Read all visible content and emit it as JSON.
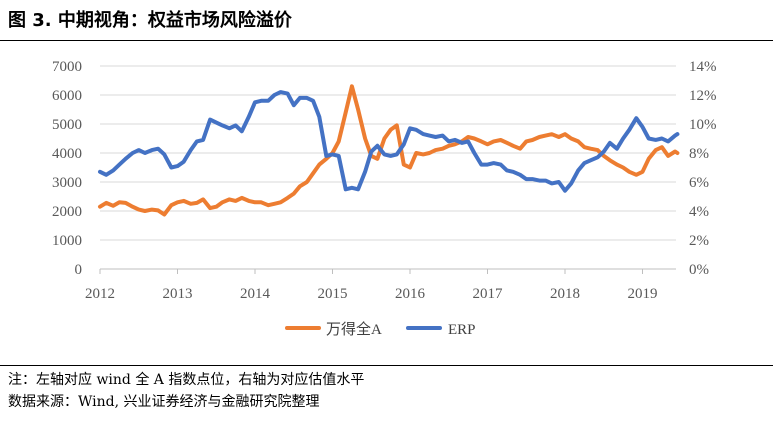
{
  "figure": {
    "title": "图 3. 中期视角：权益市场风险溢价",
    "note": "注：左轴对应 wind 全 A 指数点位，右轴为对应估值水平",
    "source": "数据来源：Wind, 兴业证券经济与金融研究院整理"
  },
  "chart_data": {
    "type": "line",
    "title": "",
    "xlabel": "",
    "ylabel": "",
    "x_ticks": [
      "2012",
      "2013",
      "2014",
      "2015",
      "2016",
      "2017",
      "2018",
      "2019"
    ],
    "y_left_ticks": [
      "0",
      "1000",
      "2000",
      "3000",
      "4000",
      "5000",
      "6000",
      "7000"
    ],
    "y_right_ticks": [
      "0%",
      "2%",
      "4%",
      "6%",
      "8%",
      "10%",
      "12%",
      "14%"
    ],
    "x_range": [
      2012,
      2019.45
    ],
    "y_left_range": [
      0,
      7000
    ],
    "y_right_range": [
      0,
      14
    ],
    "grid": "horizontal",
    "legend_position": "bottom",
    "series": [
      {
        "name": "万得全A",
        "axis": "left",
        "color": "#ED7D31",
        "points": [
          [
            2012.0,
            2150
          ],
          [
            2012.08,
            2280
          ],
          [
            2012.17,
            2180
          ],
          [
            2012.25,
            2300
          ],
          [
            2012.33,
            2280
          ],
          [
            2012.42,
            2150
          ],
          [
            2012.5,
            2050
          ],
          [
            2012.58,
            2000
          ],
          [
            2012.67,
            2050
          ],
          [
            2012.75,
            2020
          ],
          [
            2012.83,
            1880
          ],
          [
            2012.92,
            2200
          ],
          [
            2013.0,
            2300
          ],
          [
            2013.08,
            2350
          ],
          [
            2013.17,
            2250
          ],
          [
            2013.25,
            2280
          ],
          [
            2013.33,
            2400
          ],
          [
            2013.42,
            2100
          ],
          [
            2013.5,
            2150
          ],
          [
            2013.58,
            2300
          ],
          [
            2013.67,
            2400
          ],
          [
            2013.75,
            2350
          ],
          [
            2013.83,
            2450
          ],
          [
            2013.92,
            2350
          ],
          [
            2014.0,
            2300
          ],
          [
            2014.08,
            2300
          ],
          [
            2014.17,
            2200
          ],
          [
            2014.25,
            2250
          ],
          [
            2014.33,
            2300
          ],
          [
            2014.42,
            2450
          ],
          [
            2014.5,
            2600
          ],
          [
            2014.58,
            2850
          ],
          [
            2014.67,
            3000
          ],
          [
            2014.75,
            3300
          ],
          [
            2014.83,
            3600
          ],
          [
            2014.92,
            3800
          ],
          [
            2015.0,
            4000
          ],
          [
            2015.08,
            4400
          ],
          [
            2015.17,
            5400
          ],
          [
            2015.25,
            6300
          ],
          [
            2015.33,
            5500
          ],
          [
            2015.42,
            4500
          ],
          [
            2015.5,
            3900
          ],
          [
            2015.58,
            3800
          ],
          [
            2015.67,
            4500
          ],
          [
            2015.75,
            4800
          ],
          [
            2015.83,
            4950
          ],
          [
            2015.92,
            3600
          ],
          [
            2016.0,
            3500
          ],
          [
            2016.08,
            4000
          ],
          [
            2016.17,
            3950
          ],
          [
            2016.25,
            4000
          ],
          [
            2016.33,
            4100
          ],
          [
            2016.42,
            4150
          ],
          [
            2016.5,
            4250
          ],
          [
            2016.58,
            4300
          ],
          [
            2016.67,
            4400
          ],
          [
            2016.75,
            4550
          ],
          [
            2016.83,
            4500
          ],
          [
            2016.92,
            4400
          ],
          [
            2017.0,
            4300
          ],
          [
            2017.08,
            4400
          ],
          [
            2017.17,
            4450
          ],
          [
            2017.25,
            4350
          ],
          [
            2017.33,
            4250
          ],
          [
            2017.42,
            4150
          ],
          [
            2017.5,
            4400
          ],
          [
            2017.58,
            4450
          ],
          [
            2017.67,
            4550
          ],
          [
            2017.75,
            4600
          ],
          [
            2017.83,
            4650
          ],
          [
            2017.92,
            4550
          ],
          [
            2018.0,
            4650
          ],
          [
            2018.08,
            4500
          ],
          [
            2018.17,
            4400
          ],
          [
            2018.25,
            4200
          ],
          [
            2018.33,
            4150
          ],
          [
            2018.42,
            4100
          ],
          [
            2018.5,
            3900
          ],
          [
            2018.58,
            3750
          ],
          [
            2018.67,
            3600
          ],
          [
            2018.75,
            3500
          ],
          [
            2018.83,
            3350
          ],
          [
            2018.92,
            3250
          ],
          [
            2019.0,
            3350
          ],
          [
            2019.08,
            3800
          ],
          [
            2019.17,
            4100
          ],
          [
            2019.25,
            4200
          ],
          [
            2019.33,
            3900
          ],
          [
            2019.42,
            4050
          ],
          [
            2019.45,
            4000
          ]
        ]
      },
      {
        "name": "ERP",
        "axis": "right",
        "color": "#4472C4",
        "points": [
          [
            2012.0,
            6.7
          ],
          [
            2012.08,
            6.5
          ],
          [
            2012.17,
            6.8
          ],
          [
            2012.25,
            7.2
          ],
          [
            2012.33,
            7.6
          ],
          [
            2012.42,
            8.0
          ],
          [
            2012.5,
            8.2
          ],
          [
            2012.58,
            8.0
          ],
          [
            2012.67,
            8.2
          ],
          [
            2012.75,
            8.3
          ],
          [
            2012.83,
            7.9
          ],
          [
            2012.92,
            7.0
          ],
          [
            2013.0,
            7.1
          ],
          [
            2013.08,
            7.4
          ],
          [
            2013.17,
            8.2
          ],
          [
            2013.25,
            8.8
          ],
          [
            2013.33,
            8.9
          ],
          [
            2013.42,
            10.3
          ],
          [
            2013.5,
            10.1
          ],
          [
            2013.58,
            9.9
          ],
          [
            2013.67,
            9.7
          ],
          [
            2013.75,
            9.9
          ],
          [
            2013.83,
            9.5
          ],
          [
            2013.92,
            10.5
          ],
          [
            2014.0,
            11.5
          ],
          [
            2014.08,
            11.6
          ],
          [
            2014.17,
            11.6
          ],
          [
            2014.25,
            12.0
          ],
          [
            2014.33,
            12.2
          ],
          [
            2014.42,
            12.1
          ],
          [
            2014.5,
            11.3
          ],
          [
            2014.58,
            11.8
          ],
          [
            2014.67,
            11.8
          ],
          [
            2014.75,
            11.6
          ],
          [
            2014.83,
            10.5
          ],
          [
            2014.92,
            7.8
          ],
          [
            2015.0,
            7.9
          ],
          [
            2015.08,
            7.8
          ],
          [
            2015.17,
            5.5
          ],
          [
            2015.25,
            5.6
          ],
          [
            2015.33,
            5.5
          ],
          [
            2015.42,
            6.7
          ],
          [
            2015.5,
            8.1
          ],
          [
            2015.58,
            8.5
          ],
          [
            2015.67,
            7.9
          ],
          [
            2015.75,
            7.8
          ],
          [
            2015.83,
            7.9
          ],
          [
            2015.92,
            8.6
          ],
          [
            2016.0,
            9.7
          ],
          [
            2016.08,
            9.6
          ],
          [
            2016.17,
            9.3
          ],
          [
            2016.25,
            9.2
          ],
          [
            2016.33,
            9.1
          ],
          [
            2016.42,
            9.2
          ],
          [
            2016.5,
            8.8
          ],
          [
            2016.58,
            8.9
          ],
          [
            2016.67,
            8.7
          ],
          [
            2016.75,
            8.8
          ],
          [
            2016.83,
            8.0
          ],
          [
            2016.92,
            7.2
          ],
          [
            2017.0,
            7.2
          ],
          [
            2017.08,
            7.3
          ],
          [
            2017.17,
            7.2
          ],
          [
            2017.25,
            6.8
          ],
          [
            2017.33,
            6.7
          ],
          [
            2017.42,
            6.5
          ],
          [
            2017.5,
            6.2
          ],
          [
            2017.58,
            6.2
          ],
          [
            2017.67,
            6.1
          ],
          [
            2017.75,
            6.1
          ],
          [
            2017.83,
            5.9
          ],
          [
            2017.92,
            6.0
          ],
          [
            2018.0,
            5.4
          ],
          [
            2018.08,
            5.9
          ],
          [
            2018.17,
            6.8
          ],
          [
            2018.25,
            7.3
          ],
          [
            2018.33,
            7.5
          ],
          [
            2018.42,
            7.7
          ],
          [
            2018.5,
            8.1
          ],
          [
            2018.58,
            8.7
          ],
          [
            2018.67,
            8.3
          ],
          [
            2018.75,
            9.0
          ],
          [
            2018.83,
            9.6
          ],
          [
            2018.92,
            10.4
          ],
          [
            2019.0,
            9.8
          ],
          [
            2019.08,
            9.0
          ],
          [
            2019.17,
            8.9
          ],
          [
            2019.25,
            9.0
          ],
          [
            2019.33,
            8.8
          ],
          [
            2019.42,
            9.2
          ],
          [
            2019.45,
            9.3
          ]
        ]
      }
    ]
  }
}
